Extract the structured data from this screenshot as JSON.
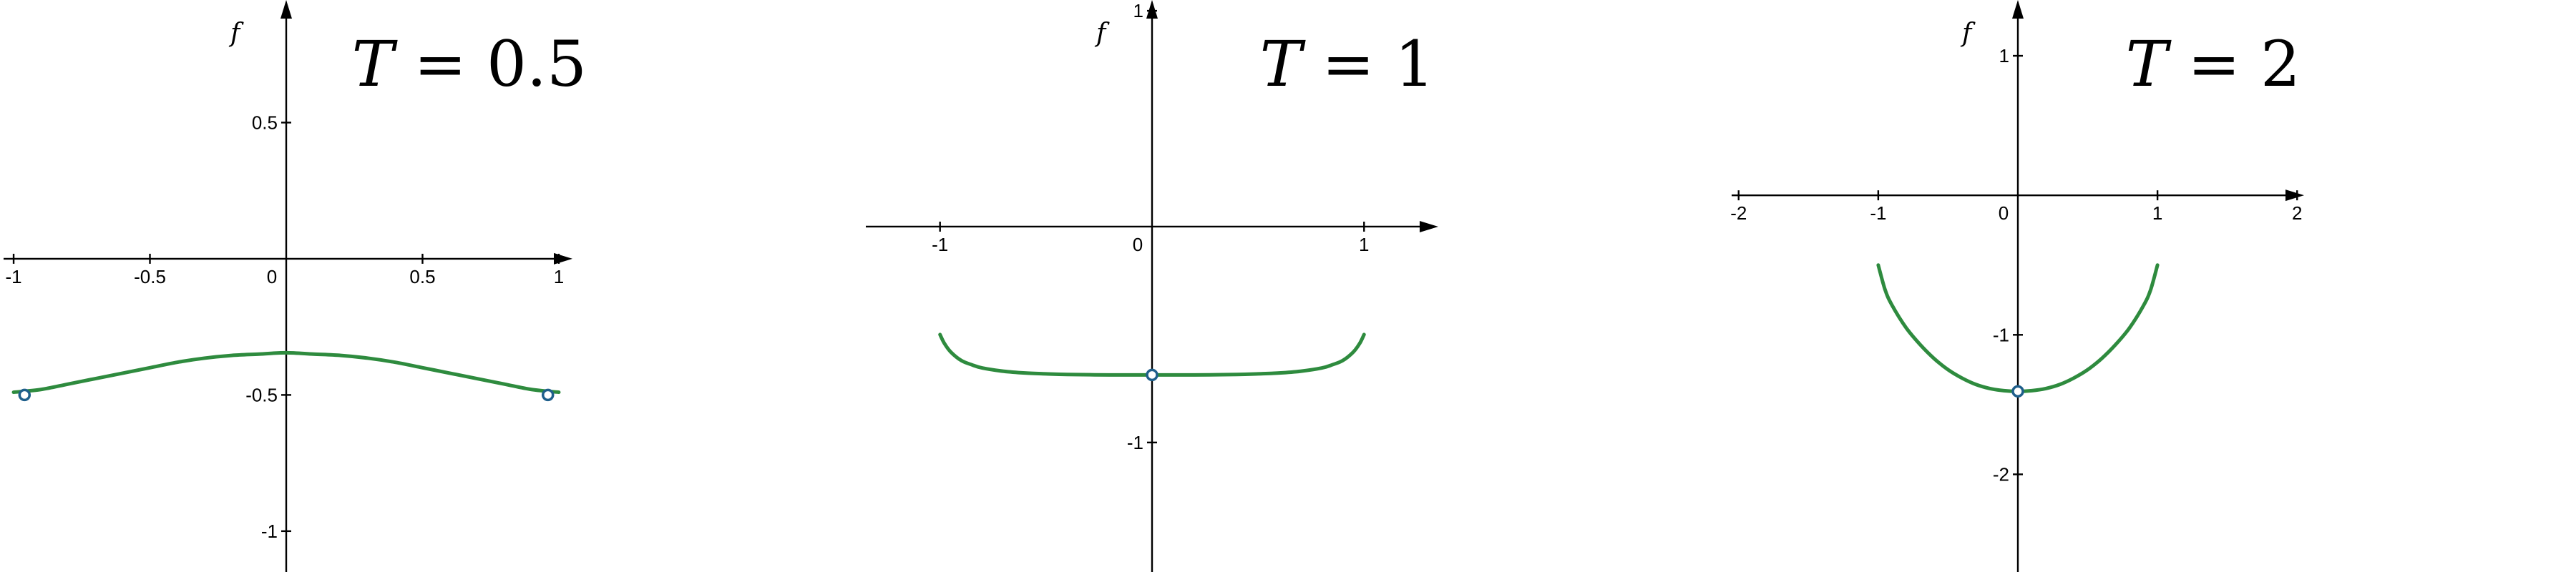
{
  "colors": {
    "curve": "#2e8b3e",
    "marker_stroke": "#1f5f8b",
    "marker_fill": "#ffffff",
    "axis": "#000000"
  },
  "chart_data": [
    {
      "type": "line",
      "title": "T = 0.5",
      "title_var": "T",
      "title_value": "0.5",
      "xlabel": "",
      "ylabel": "f",
      "xlim": [
        -1.05,
        1.05
      ],
      "ylim": [
        -1.15,
        0.95
      ],
      "grid": false,
      "xticks": [
        -1,
        -0.5,
        0,
        0.5,
        1
      ],
      "xtick_labels": [
        "-1",
        "-0.5",
        "0",
        "0.5",
        "1"
      ],
      "yticks": [
        -1,
        -0.5,
        0.5
      ],
      "ytick_labels": [
        "-1",
        "-0.5",
        "0.5"
      ],
      "series": [
        {
          "x": [
            -1,
            -0.9,
            -0.8,
            -0.7,
            -0.6,
            -0.5,
            -0.4,
            -0.3,
            -0.2,
            -0.1,
            0,
            0.1,
            0.2,
            0.3,
            0.4,
            0.5,
            0.6,
            0.7,
            0.8,
            0.9,
            1
          ],
          "y": [
            -0.49,
            -0.48,
            -0.46,
            -0.44,
            -0.42,
            -0.4,
            -0.38,
            -0.365,
            -0.355,
            -0.35,
            -0.345,
            -0.35,
            -0.355,
            -0.365,
            -0.38,
            -0.4,
            -0.42,
            -0.44,
            -0.46,
            -0.48,
            -0.49
          ]
        }
      ],
      "markers": [
        {
          "x": -0.96,
          "y": -0.5
        },
        {
          "x": 0.96,
          "y": -0.5
        }
      ]
    },
    {
      "type": "line",
      "title": "T = 1",
      "title_var": "T",
      "title_value": "1",
      "xlabel": "",
      "ylabel": "f",
      "xlim": [
        -1.35,
        1.35
      ],
      "ylim": [
        -1.6,
        1.05
      ],
      "grid": false,
      "xticks": [
        -1,
        0,
        1
      ],
      "xtick_labels": [
        "-1",
        "0",
        "1"
      ],
      "yticks": [
        -1,
        1
      ],
      "ytick_labels": [
        "-1",
        "1"
      ],
      "series": [
        {
          "x": [
            -1,
            -0.98,
            -0.95,
            -0.9,
            -0.85,
            -0.8,
            -0.7,
            -0.6,
            -0.5,
            -0.4,
            -0.2,
            0,
            0.2,
            0.4,
            0.5,
            0.6,
            0.7,
            0.8,
            0.85,
            0.9,
            0.95,
            0.98,
            1
          ],
          "y": [
            -0.5,
            -0.54,
            -0.58,
            -0.62,
            -0.64,
            -0.655,
            -0.67,
            -0.678,
            -0.682,
            -0.685,
            -0.687,
            -0.687,
            -0.687,
            -0.685,
            -0.682,
            -0.678,
            -0.67,
            -0.655,
            -0.64,
            -0.62,
            -0.58,
            -0.54,
            -0.5
          ]
        }
      ],
      "markers": [
        {
          "x": 0,
          "y": -0.687
        }
      ]
    },
    {
      "type": "line",
      "title": "T = 2",
      "title_var": "T",
      "title_value": "2",
      "xlabel": "",
      "ylabel": "f",
      "xlim": [
        -2.05,
        2.05
      ],
      "ylim": [
        -2.7,
        1.4
      ],
      "grid": false,
      "xticks": [
        -2,
        -1,
        0,
        1,
        2
      ],
      "xtick_labels": [
        "-2",
        "-1",
        "0",
        "1",
        "2"
      ],
      "yticks": [
        -2,
        -1,
        1
      ],
      "ytick_labels": [
        "-2",
        "-1",
        "1"
      ],
      "series": [
        {
          "x": [
            -1,
            -0.95,
            -0.9,
            -0.8,
            -0.7,
            -0.6,
            -0.5,
            -0.4,
            -0.3,
            -0.2,
            -0.1,
            0,
            0.1,
            0.2,
            0.3,
            0.4,
            0.5,
            0.6,
            0.7,
            0.8,
            0.9,
            0.95,
            1
          ],
          "y": [
            -0.5,
            -0.68,
            -0.79,
            -0.95,
            -1.07,
            -1.17,
            -1.25,
            -1.31,
            -1.356,
            -1.385,
            -1.4,
            -1.405,
            -1.4,
            -1.385,
            -1.356,
            -1.31,
            -1.25,
            -1.17,
            -1.07,
            -0.95,
            -0.79,
            -0.68,
            -0.5
          ]
        }
      ],
      "markers": [
        {
          "x": 0,
          "y": -1.405
        }
      ]
    }
  ]
}
